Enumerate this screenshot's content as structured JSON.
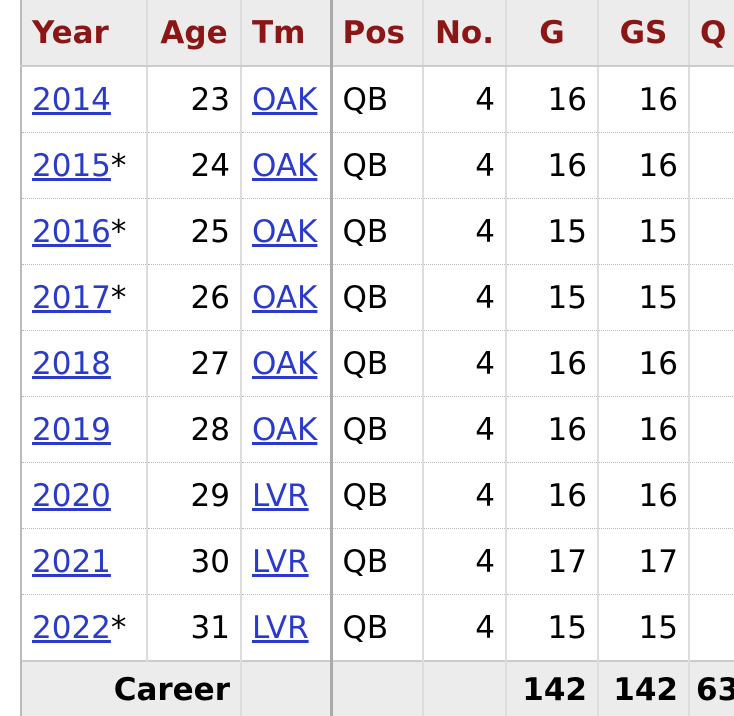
{
  "table": {
    "headers": [
      "Year",
      "Age",
      "Tm",
      "Pos",
      "No.",
      "G",
      "GS",
      "Q"
    ],
    "rows": [
      {
        "year": "2014",
        "note": null,
        "age": "23",
        "team": "OAK",
        "pos": "QB",
        "no": "4",
        "g": "16",
        "gs": "16"
      },
      {
        "year": "2015",
        "note": "*",
        "age": "24",
        "team": "OAK",
        "pos": "QB",
        "no": "4",
        "g": "16",
        "gs": "16"
      },
      {
        "year": "2016",
        "note": "*",
        "age": "25",
        "team": "OAK",
        "pos": "QB",
        "no": "4",
        "g": "15",
        "gs": "15"
      },
      {
        "year": "2017",
        "note": "*",
        "age": "26",
        "team": "OAK",
        "pos": "QB",
        "no": "4",
        "g": "15",
        "gs": "15"
      },
      {
        "year": "2018",
        "note": null,
        "age": "27",
        "team": "OAK",
        "pos": "QB",
        "no": "4",
        "g": "16",
        "gs": "16"
      },
      {
        "year": "2019",
        "note": null,
        "age": "28",
        "team": "OAK",
        "pos": "QB",
        "no": "4",
        "g": "16",
        "gs": "16"
      },
      {
        "year": "2020",
        "note": null,
        "age": "29",
        "team": "LVR",
        "pos": "QB",
        "no": "4",
        "g": "16",
        "gs": "16"
      },
      {
        "year": "2021",
        "note": null,
        "age": "30",
        "team": "LVR",
        "pos": "QB",
        "no": "4",
        "g": "17",
        "gs": "17"
      },
      {
        "year": "2022",
        "note": "*",
        "age": "31",
        "team": "LVR",
        "pos": "QB",
        "no": "4",
        "g": "15",
        "gs": "15"
      }
    ],
    "career": {
      "label": "Career",
      "g": "142",
      "gs": "142",
      "qbrec": "63"
    }
  }
}
